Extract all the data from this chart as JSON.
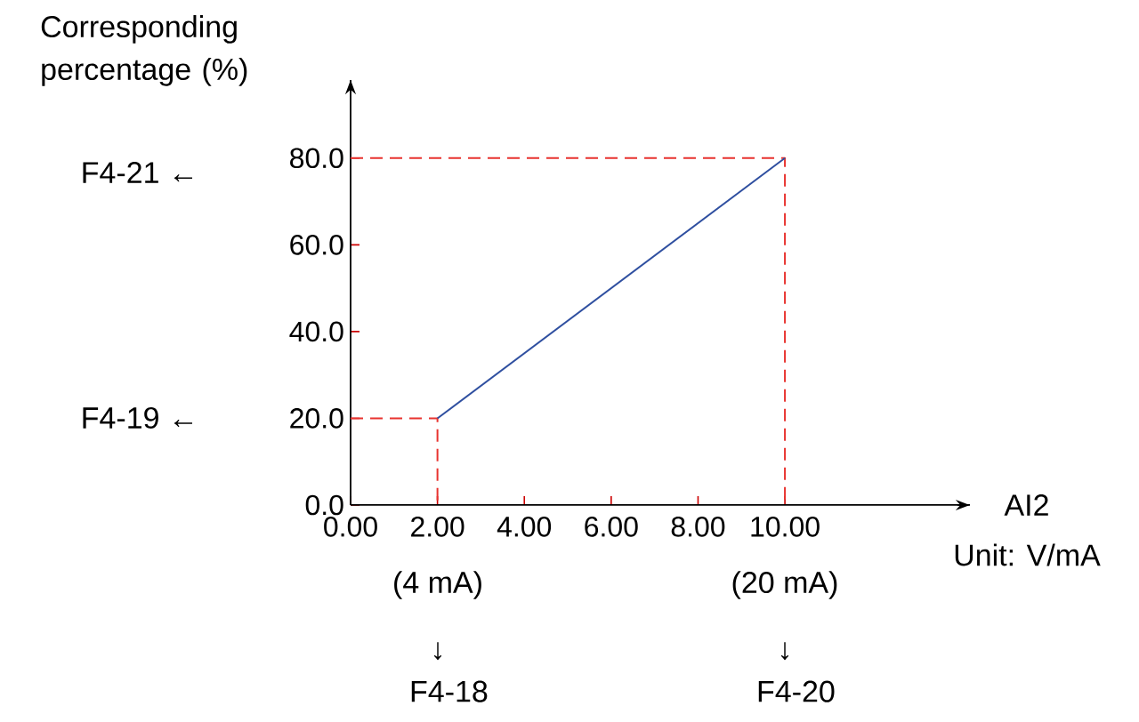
{
  "chart_data": {
    "type": "line",
    "ylabel": "Corresponding percentage (%)",
    "xlabel": "AI2",
    "xlim": [
      0,
      14.26
    ],
    "ylim": [
      0,
      98
    ],
    "xticks": [
      {
        "value": 0,
        "label": "0.00"
      },
      {
        "value": 2,
        "label": "2.00"
      },
      {
        "value": 4,
        "label": "4.00"
      },
      {
        "value": 6,
        "label": "6.00"
      },
      {
        "value": 8,
        "label": "8.00"
      },
      {
        "value": 10,
        "label": "10.00"
      }
    ],
    "yticks": [
      {
        "value": 0,
        "label": "0.0"
      },
      {
        "value": 20,
        "label": "20.0"
      },
      {
        "value": 40,
        "label": "40.0"
      },
      {
        "value": 60,
        "label": "60.0"
      },
      {
        "value": 80,
        "label": "80.0"
      }
    ],
    "grid": false,
    "series": [
      {
        "x": [
          0,
          2,
          2
        ],
        "values": [
          20,
          20,
          0
        ],
        "color": "#e8332f",
        "line_style": "dashed"
      },
      {
        "x": [
          0,
          10,
          10
        ],
        "values": [
          80,
          80,
          0
        ],
        "color": "#e8332f",
        "line_style": "dashed"
      },
      {
        "x": [
          2,
          10
        ],
        "values": [
          20,
          80
        ],
        "color": "#2f4fa0",
        "line_style": "solid"
      }
    ],
    "annotations": [
      "F4-21 ←",
      "F4-19 ←",
      "(4 mA)",
      "(20 mA)",
      "↓ F4-18",
      "↓ F4-20",
      "Unit: V/mA"
    ]
  }
}
